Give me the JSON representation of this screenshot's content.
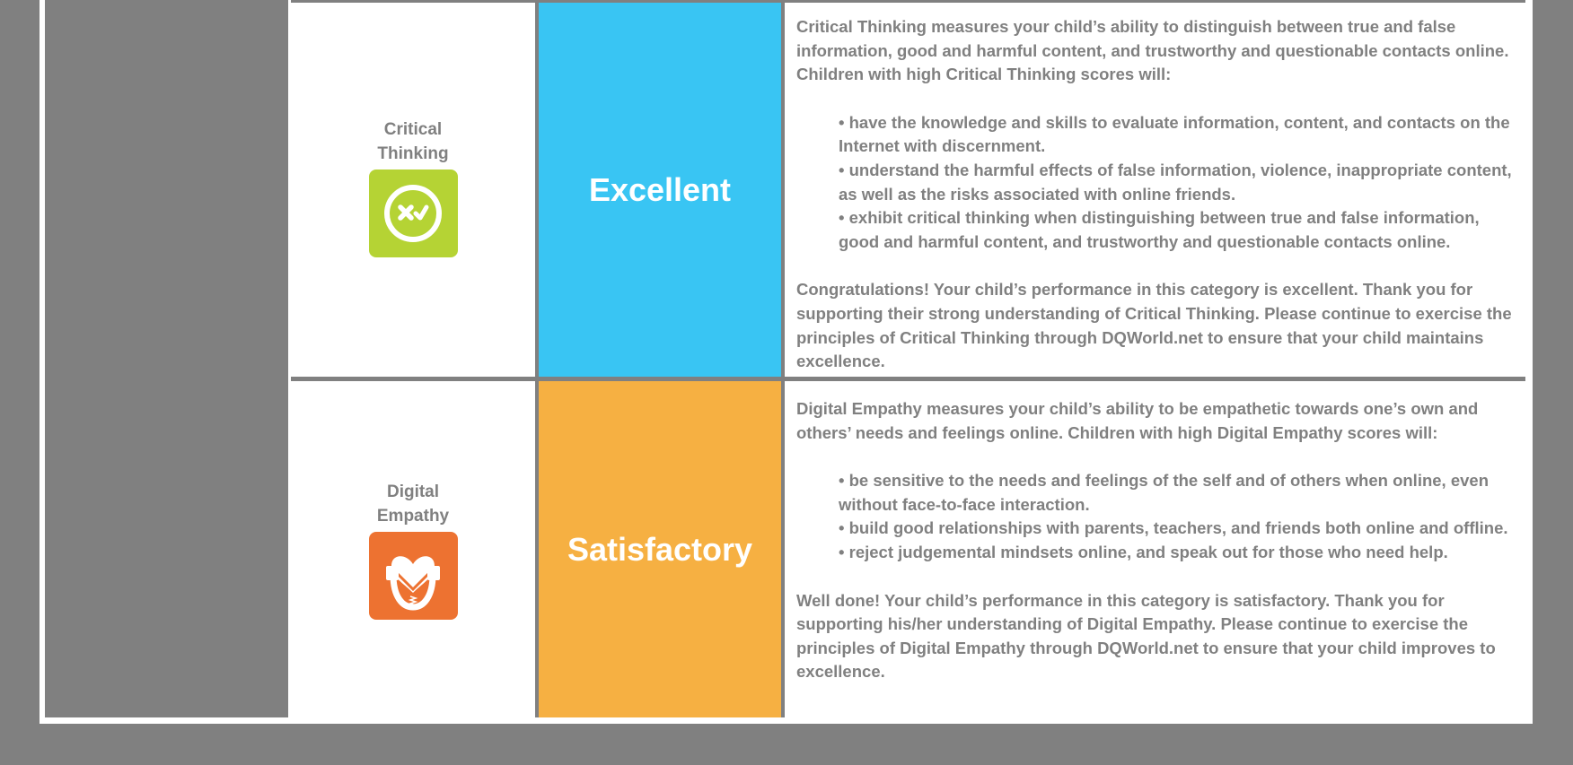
{
  "rows": [
    {
      "category": "Critical Thinking",
      "category_line1": "Critical",
      "category_line2": "Thinking",
      "icon": "cross-check-circle-icon",
      "icon_color": "#b5d334",
      "rating": "Excellent",
      "rating_color": "#39c5f3",
      "intro": "Critical Thinking measures your child’s ability to distinguish between true and false information, good and harmful content, and trustworthy and questionable contacts online. Children with high Critical Thinking scores will:",
      "bullets": [
        "• have the knowledge and skills to evaluate information, content, and contacts on the Internet with discernment.",
        "• understand the harmful effects of false information, violence, inappropriate content, as well as the risks associated with online friends.",
        "• exhibit critical thinking when distinguishing between true and false information, good and harmful content, and trustworthy and questionable contacts online."
      ],
      "conclusion": "Congratulations! Your child’s performance in this category is excellent. Thank you for supporting their strong understanding of Critical Thinking. Please continue to exercise the principles of Critical Thinking through DQWorld.net to ensure that your child maintains excellence."
    },
    {
      "category": "Digital Empathy",
      "category_line1": "Digital",
      "category_line2": "Empathy",
      "icon": "heart-hands-icon",
      "icon_color": "#ed7231",
      "rating": "Satisfactory",
      "rating_color": "#f6b042",
      "intro": "Digital Empathy measures your child’s ability to be empathetic towards one’s own and others’ needs and feelings online. Children with high Digital Empathy scores will:",
      "bullets": [
        "• be sensitive to the needs and feelings of the self and of others when online, even without face-to-face interaction.",
        "• build good relationships with parents, teachers, and friends both online and offline.",
        "• reject judgemental mindsets online, and speak out for those who need help."
      ],
      "conclusion": "Well done! Your child’s performance in this category is satisfactory. Thank you for supporting his/her understanding of Digital Empathy. Please continue to exercise the principles of Digital Empathy through DQWorld.net to ensure that your child improves to excellence."
    }
  ]
}
